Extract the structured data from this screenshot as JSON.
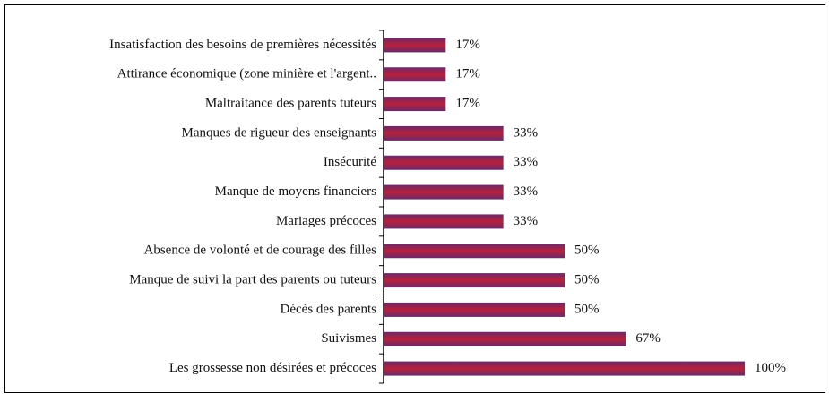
{
  "chart_data": {
    "type": "bar",
    "orientation": "horizontal",
    "categories": [
      "Insatisfaction des besoins de premières nécessités",
      "Attirance économique (zone minière et l'argent..",
      "Maltraitance des parents tuteurs",
      "Manques de rigueur des enseignants",
      "Insécurité",
      "Manque de moyens financiers",
      "Mariages précoces",
      "Absence de volonté et de courage des filles",
      "Manque de suivi la part des parents ou tuteurs",
      "Décès des parents",
      "Suivismes",
      "Les grossesse non désirées et précoces"
    ],
    "values": [
      17,
      17,
      17,
      33,
      33,
      33,
      33,
      50,
      50,
      50,
      67,
      100
    ],
    "value_labels": [
      "17%",
      "17%",
      "17%",
      "33%",
      "33%",
      "33%",
      "33%",
      "50%",
      "50%",
      "50%",
      "67%",
      "100%"
    ],
    "color": "#a3203f"
  }
}
